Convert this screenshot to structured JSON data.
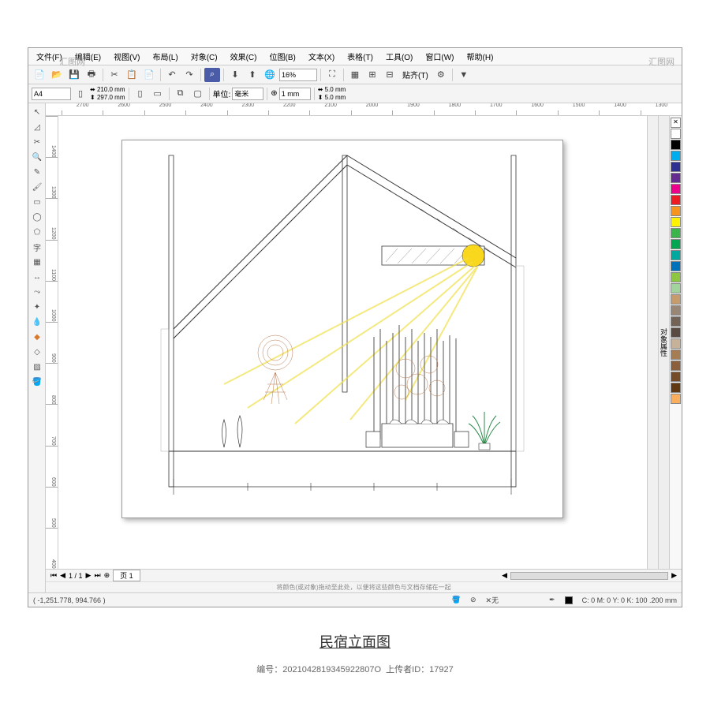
{
  "menu": {
    "items": [
      "文件(F)",
      "编辑(E)",
      "视图(V)",
      "布局(L)",
      "对象(C)",
      "效果(C)",
      "位图(B)",
      "文本(X)",
      "表格(T)",
      "工具(O)",
      "窗口(W)",
      "帮助(H)"
    ]
  },
  "toolbar1": {
    "zoom": "16%",
    "snap_label": "贴齐(T)"
  },
  "toolbar2": {
    "paper": "A4",
    "width": "210.0 mm",
    "height": "297.0 mm",
    "unit_label": "单位:",
    "unit_value": "毫米",
    "nudge": "1 mm",
    "dup_x": "5.0 mm",
    "dup_y": "5.0 mm"
  },
  "ruler_h": [
    "2700",
    "2600",
    "2500",
    "2400",
    "2300",
    "2200",
    "2100",
    "2000",
    "1900",
    "1800",
    "1700",
    "1600",
    "1500",
    "1400",
    "1300"
  ],
  "ruler_v": [
    "1400",
    "1300",
    "1200",
    "1100",
    "1000",
    "900",
    "800",
    "700",
    "600",
    "500",
    "400"
  ],
  "pagebar": {
    "nav": "1 / 1",
    "tab": "页 1"
  },
  "hint": "将颜色(或对象)拖动至此处，以便将这些颜色与文档存储在一起",
  "status": {
    "coords": "( -1,251.778, 994.766 )",
    "fill_label": "无",
    "cmyk": "C: 0 M: 0 Y: 0 K: 100  .200 mm"
  },
  "palette": [
    "#ffffff",
    "#000000",
    "#00aeef",
    "#2e3192",
    "#662d91",
    "#ec008c",
    "#ed1c24",
    "#f7941d",
    "#fff200",
    "#39b54a",
    "#00a651",
    "#00a99d",
    "#0072bc",
    "#8dc63f",
    "#a3d39c",
    "#c69c6d",
    "#998675",
    "#736357",
    "#594a42",
    "#c7b299",
    "#a67c52",
    "#8b5e3c",
    "#754c29",
    "#603913",
    "#fbaf5d"
  ],
  "caption": "民宿立面图",
  "meta": {
    "id_label": "编号：",
    "id": "2021042819345922807O",
    "uploader_label": "上传者ID：",
    "uploader": "17927"
  },
  "watermark": "汇图网",
  "drawing": {
    "sun_color": "#f9d71c",
    "ray_color": "#f0e04a",
    "deco_color": "#b8764a",
    "plant_color": "#2a8a4a"
  }
}
